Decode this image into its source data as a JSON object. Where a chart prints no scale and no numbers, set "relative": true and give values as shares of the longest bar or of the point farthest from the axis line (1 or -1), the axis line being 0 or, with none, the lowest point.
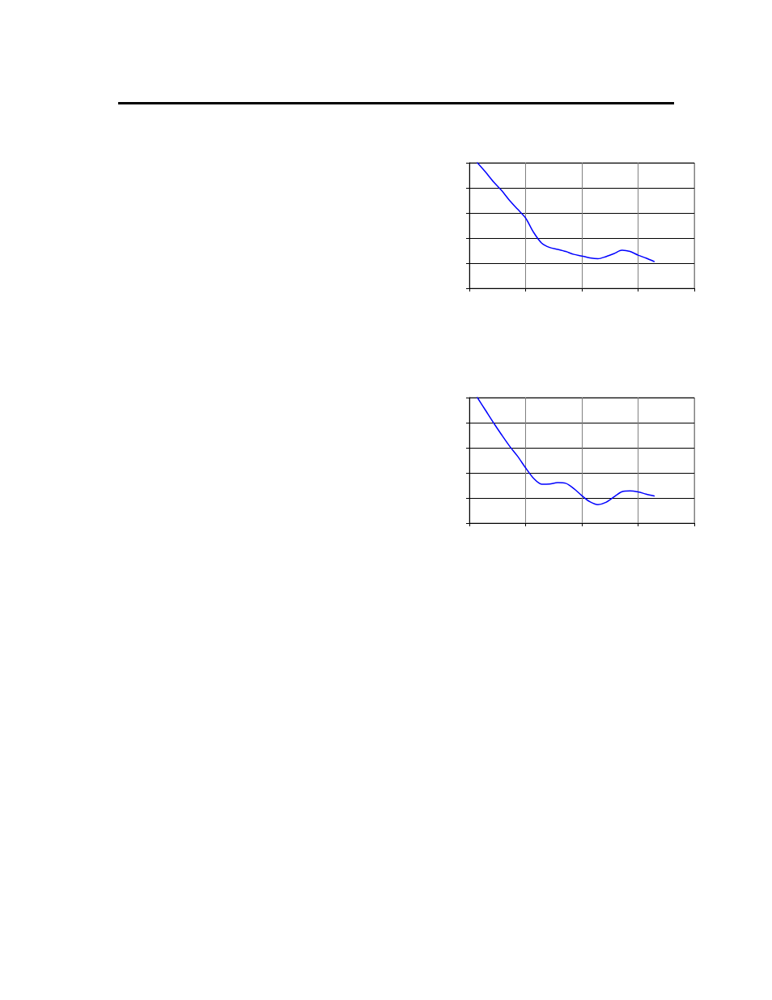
{
  "chart_data": [
    {
      "type": "line",
      "relative": true,
      "grid": true,
      "marker": "none",
      "color": "#0000ff",
      "categories": [
        null,
        null,
        null,
        null,
        null,
        null,
        null,
        null,
        null,
        null,
        null,
        null,
        null,
        null,
        null,
        null,
        null,
        null,
        null,
        null,
        null,
        null,
        null,
        null,
        null,
        null,
        null,
        null,
        null
      ],
      "values": [
        null,
        1.0,
        0.927,
        0.848,
        0.78,
        0.7,
        0.63,
        0.56,
        0.445,
        0.36,
        0.325,
        0.31,
        0.293,
        0.27,
        0.257,
        0.242,
        0.235,
        0.252,
        0.276,
        0.303,
        0.293,
        0.264,
        0.24,
        0.213,
        null,
        null,
        null,
        null,
        null
      ]
    },
    {
      "type": "line",
      "relative": true,
      "grid": true,
      "marker": "none",
      "color": "#0000ff",
      "categories": [
        null,
        null,
        null,
        null,
        null,
        null,
        null,
        null,
        null,
        null,
        null,
        null,
        null,
        null,
        null,
        null,
        null,
        null,
        null,
        null,
        null,
        null,
        null,
        null,
        null,
        null,
        null,
        null,
        null
      ],
      "values": [
        null,
        1.0,
        0.9,
        0.8,
        0.705,
        0.614,
        0.533,
        0.44,
        0.356,
        0.31,
        0.312,
        0.322,
        0.317,
        0.275,
        0.219,
        0.17,
        0.147,
        0.165,
        0.209,
        0.25,
        0.256,
        0.248,
        0.231,
        0.216,
        null,
        null,
        null,
        null,
        null
      ]
    }
  ]
}
